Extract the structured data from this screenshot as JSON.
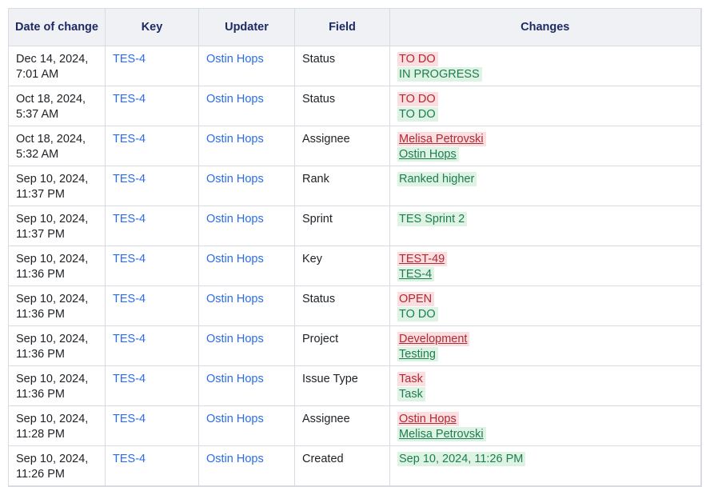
{
  "table": {
    "columns": [
      {
        "label": "Date of change"
      },
      {
        "label": "Key"
      },
      {
        "label": "Updater"
      },
      {
        "label": "Field"
      },
      {
        "label": "Changes"
      }
    ],
    "rows": [
      {
        "date": "Dec 14, 2024, 7:01 AM",
        "key": "TES-4",
        "updater": "Ostin Hops",
        "field": "Status",
        "changes": [
          {
            "text": "TO DO",
            "kind": "removed",
            "link": false
          },
          {
            "text": "IN PROGRESS",
            "kind": "added",
            "link": false
          }
        ]
      },
      {
        "date": "Oct 18, 2024, 5:37 AM",
        "key": "TES-4",
        "updater": "Ostin Hops",
        "field": "Status",
        "changes": [
          {
            "text": "TO DO",
            "kind": "removed",
            "link": false
          },
          {
            "text": "TO DO",
            "kind": "added",
            "link": false
          }
        ]
      },
      {
        "date": "Oct 18, 2024, 5:32 AM",
        "key": "TES-4",
        "updater": "Ostin Hops",
        "field": "Assignee",
        "changes": [
          {
            "text": "Melisa Petrovski",
            "kind": "removed",
            "link": true
          },
          {
            "text": "Ostin Hops",
            "kind": "added",
            "link": true
          }
        ]
      },
      {
        "date": "Sep 10, 2024, 11:37 PM",
        "key": "TES-4",
        "updater": "Ostin Hops",
        "field": "Rank",
        "changes": [
          {
            "text": "Ranked higher",
            "kind": "added",
            "link": false
          }
        ]
      },
      {
        "date": "Sep 10, 2024, 11:37 PM",
        "key": "TES-4",
        "updater": "Ostin Hops",
        "field": "Sprint",
        "changes": [
          {
            "text": "TES Sprint 2",
            "kind": "added",
            "link": false
          }
        ]
      },
      {
        "date": "Sep 10, 2024, 11:36 PM",
        "key": "TES-4",
        "updater": "Ostin Hops",
        "field": "Key",
        "changes": [
          {
            "text": "TEST-49",
            "kind": "removed",
            "link": true
          },
          {
            "text": "TES-4",
            "kind": "added",
            "link": true
          }
        ]
      },
      {
        "date": "Sep 10, 2024, 11:36 PM",
        "key": "TES-4",
        "updater": "Ostin Hops",
        "field": "Status",
        "changes": [
          {
            "text": "OPEN",
            "kind": "removed",
            "link": false
          },
          {
            "text": "TO DO",
            "kind": "added",
            "link": false
          }
        ]
      },
      {
        "date": "Sep 10, 2024, 11:36 PM",
        "key": "TES-4",
        "updater": "Ostin Hops",
        "field": "Project",
        "changes": [
          {
            "text": "Development",
            "kind": "removed",
            "link": true
          },
          {
            "text": "Testing",
            "kind": "added",
            "link": true
          }
        ]
      },
      {
        "date": "Sep 10, 2024, 11:36 PM",
        "key": "TES-4",
        "updater": "Ostin Hops",
        "field": "Issue Type",
        "changes": [
          {
            "text": "Task",
            "kind": "removed",
            "link": false
          },
          {
            "text": "Task",
            "kind": "added",
            "link": false
          }
        ]
      },
      {
        "date": "Sep 10, 2024, 11:28 PM",
        "key": "TES-4",
        "updater": "Ostin Hops",
        "field": "Assignee",
        "changes": [
          {
            "text": "Ostin Hops",
            "kind": "removed",
            "link": true
          },
          {
            "text": "Melisa Petrovski",
            "kind": "added",
            "link": true
          }
        ]
      },
      {
        "date": "Sep 10, 2024, 11:26 PM",
        "key": "TES-4",
        "updater": "Ostin Hops",
        "field": "Created",
        "changes": [
          {
            "text": "Sep 10, 2024, 11:26 PM",
            "kind": "added",
            "link": false
          }
        ]
      }
    ],
    "colors": {
      "header_bg": "#eff1f4",
      "header_text": "#1e2b63",
      "border": "#d8dce2",
      "link_blue": "#2b6ce6",
      "removed_text": "#ae2a33",
      "removed_bg": "#fbdee0",
      "added_text": "#1c7e4f",
      "added_bg": "#def3e4",
      "body_text": "#1d2125"
    }
  }
}
